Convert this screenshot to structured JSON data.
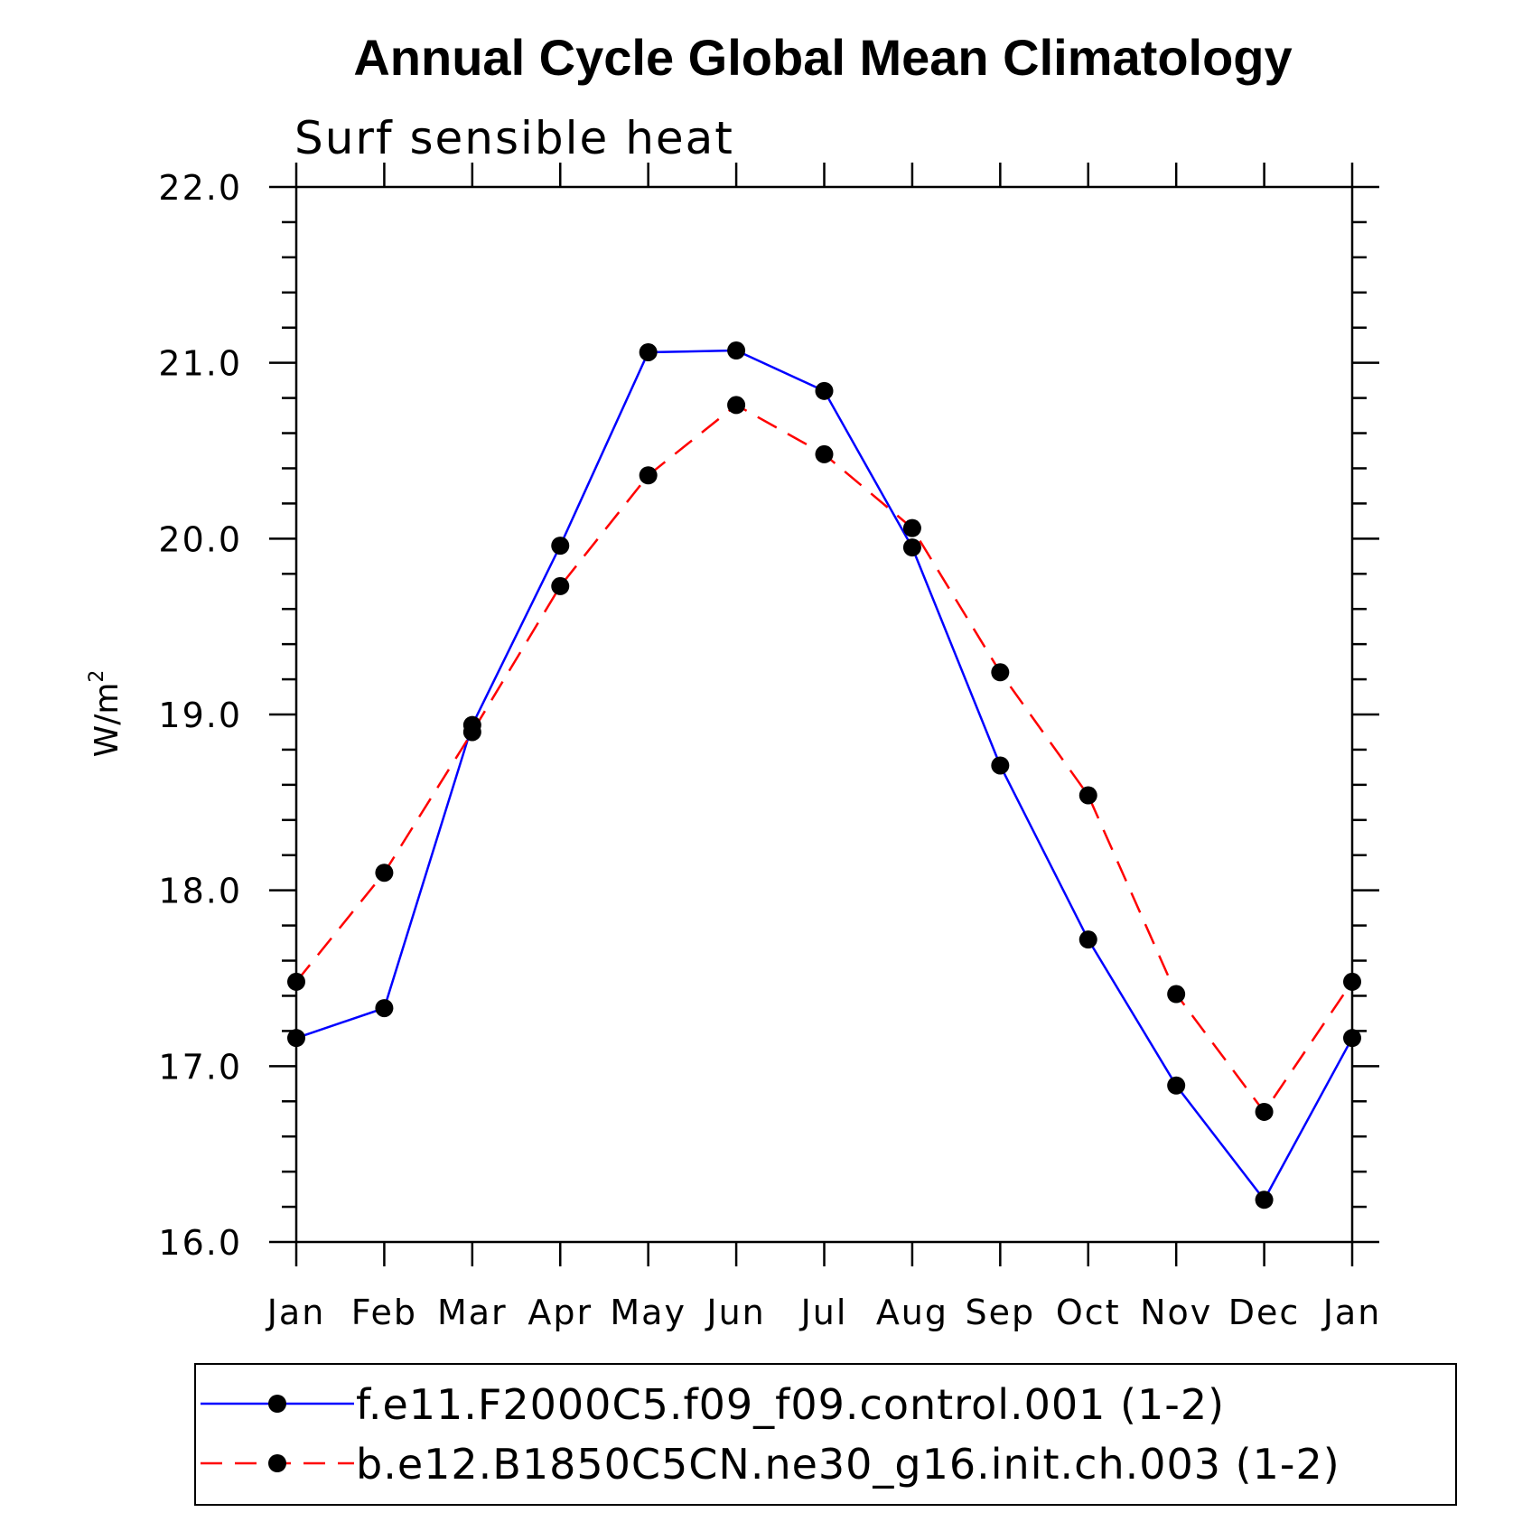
{
  "chart_data": {
    "type": "line",
    "title": "Annual Cycle Global Mean Climatology",
    "subtitle": "Surf sensible heat",
    "ylabel": "W/m",
    "ylabel_superscript": "2",
    "xlabel": "",
    "categories": [
      "Jan",
      "Feb",
      "Mar",
      "Apr",
      "May",
      "Jun",
      "Jul",
      "Aug",
      "Sep",
      "Oct",
      "Nov",
      "Dec",
      "Jan"
    ],
    "ylim": [
      16.0,
      22.0
    ],
    "yticks": [
      "16.0",
      "17.0",
      "18.0",
      "19.0",
      "20.0",
      "21.0",
      "22.0"
    ],
    "ytick_values": [
      16,
      17,
      18,
      19,
      20,
      21,
      22
    ],
    "grid": false,
    "legend_position": "bottom",
    "series": [
      {
        "name": "f.e11.F2000C5.f09_f09.control.001 (1-2)",
        "color": "#0000ff",
        "style": "solid",
        "values": [
          17.16,
          17.33,
          18.94,
          19.96,
          21.06,
          21.07,
          20.84,
          19.95,
          18.71,
          17.72,
          16.89,
          16.24,
          17.16
        ]
      },
      {
        "name": "b.e12.B1850C5CN.ne30_g16.init.ch.003 (1-2)",
        "color": "#ff0000",
        "style": "dashed",
        "values": [
          17.48,
          18.1,
          18.9,
          19.73,
          20.36,
          20.76,
          20.48,
          20.06,
          19.24,
          18.54,
          17.41,
          16.74,
          17.48
        ]
      }
    ]
  }
}
